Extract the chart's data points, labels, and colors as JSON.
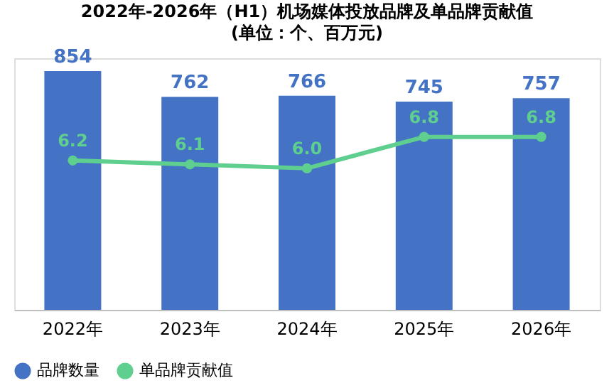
{
  "chart_data": {
    "type": "bar",
    "title": "2022年-2026年（H1）机场媒体投放品牌及单品牌贡献值",
    "subtitle": "(单位：个、百万元)",
    "categories": [
      "2022年",
      "2023年",
      "2024年",
      "2025年",
      "2026年"
    ],
    "series": [
      {
        "name": "品牌数量",
        "color": "#4472c4",
        "values": [
          854,
          762,
          766,
          745,
          757
        ]
      },
      {
        "name": "单品牌贡献值",
        "type": "line",
        "axis": "y2",
        "color": "#5fcf8f",
        "values": [
          6.2,
          6.1,
          6.0,
          6.8,
          6.8
        ],
        "value_labels": [
          "6.2",
          "6.1",
          "6.0",
          "6.8",
          "6.8"
        ]
      }
    ],
    "data_labels": true,
    "legend": "bottom",
    "marker": "circle",
    "grid": false
  }
}
